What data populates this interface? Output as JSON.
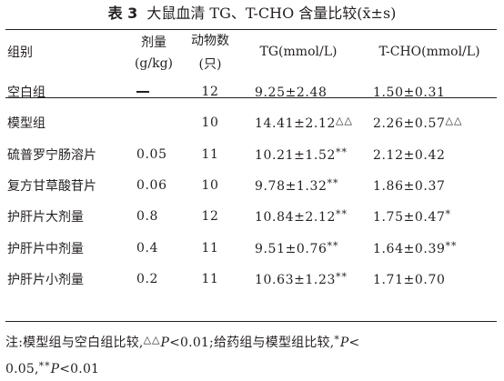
{
  "caption": {
    "number": "表 3",
    "title": "大鼠血清 TG、T-CHO 含量比较(x̄±s)"
  },
  "table": {
    "headers": {
      "group": "组别",
      "dose_line1": "剂量",
      "dose_line2": "(g/kg)",
      "n_line1": "动物数",
      "n_line2": "(只)",
      "tg": "TG(mmol/L)",
      "tc": "T-CHO(mmol/L)"
    },
    "rows": [
      {
        "group": "空白组",
        "dose": "—",
        "n": "12",
        "tg": "9.25±2.48",
        "tg_mark": "",
        "tc": "1.50±0.31",
        "tc_mark": ""
      },
      {
        "group": "模型组",
        "dose": "",
        "n": "10",
        "tg": "14.41±2.12",
        "tg_mark": "△△",
        "tc": "2.26±0.57",
        "tc_mark": "△△"
      },
      {
        "group": "硫普罗宁肠溶片",
        "dose": "0.05",
        "n": "11",
        "tg": "10.21±1.52",
        "tg_mark": "**",
        "tc": "2.12±0.42",
        "tc_mark": ""
      },
      {
        "group": "复方甘草酸苷片",
        "dose": "0.06",
        "n": "10",
        "tg": "9.78±1.32",
        "tg_mark": "**",
        "tc": "1.86±0.37",
        "tc_mark": ""
      },
      {
        "group": "护肝片大剂量",
        "dose": "0.8",
        "n": "12",
        "tg": "10.84±2.12",
        "tg_mark": "**",
        "tc": "1.75±0.47",
        "tc_mark": "*"
      },
      {
        "group": "护肝片中剂量",
        "dose": "0.4",
        "n": "11",
        "tg": "9.51±0.76",
        "tg_mark": "**",
        "tc": "1.64±0.39",
        "tc_mark": "**"
      },
      {
        "group": "护肝片小剂量",
        "dose": "0.2",
        "n": "11",
        "tg": "10.63±1.23",
        "tg_mark": "**",
        "tc": "1.71±0.70",
        "tc_mark": ""
      }
    ]
  },
  "note": {
    "prefix": "注:模型组与空白组比较,",
    "mark1": "△△",
    "p_label": "P",
    "part1": "<0.01;给药组与模型组比较,",
    "mark2": "*",
    "part2": "<",
    "line2_start": "0.05,",
    "mark3": "**",
    "part3": "<0.01"
  }
}
